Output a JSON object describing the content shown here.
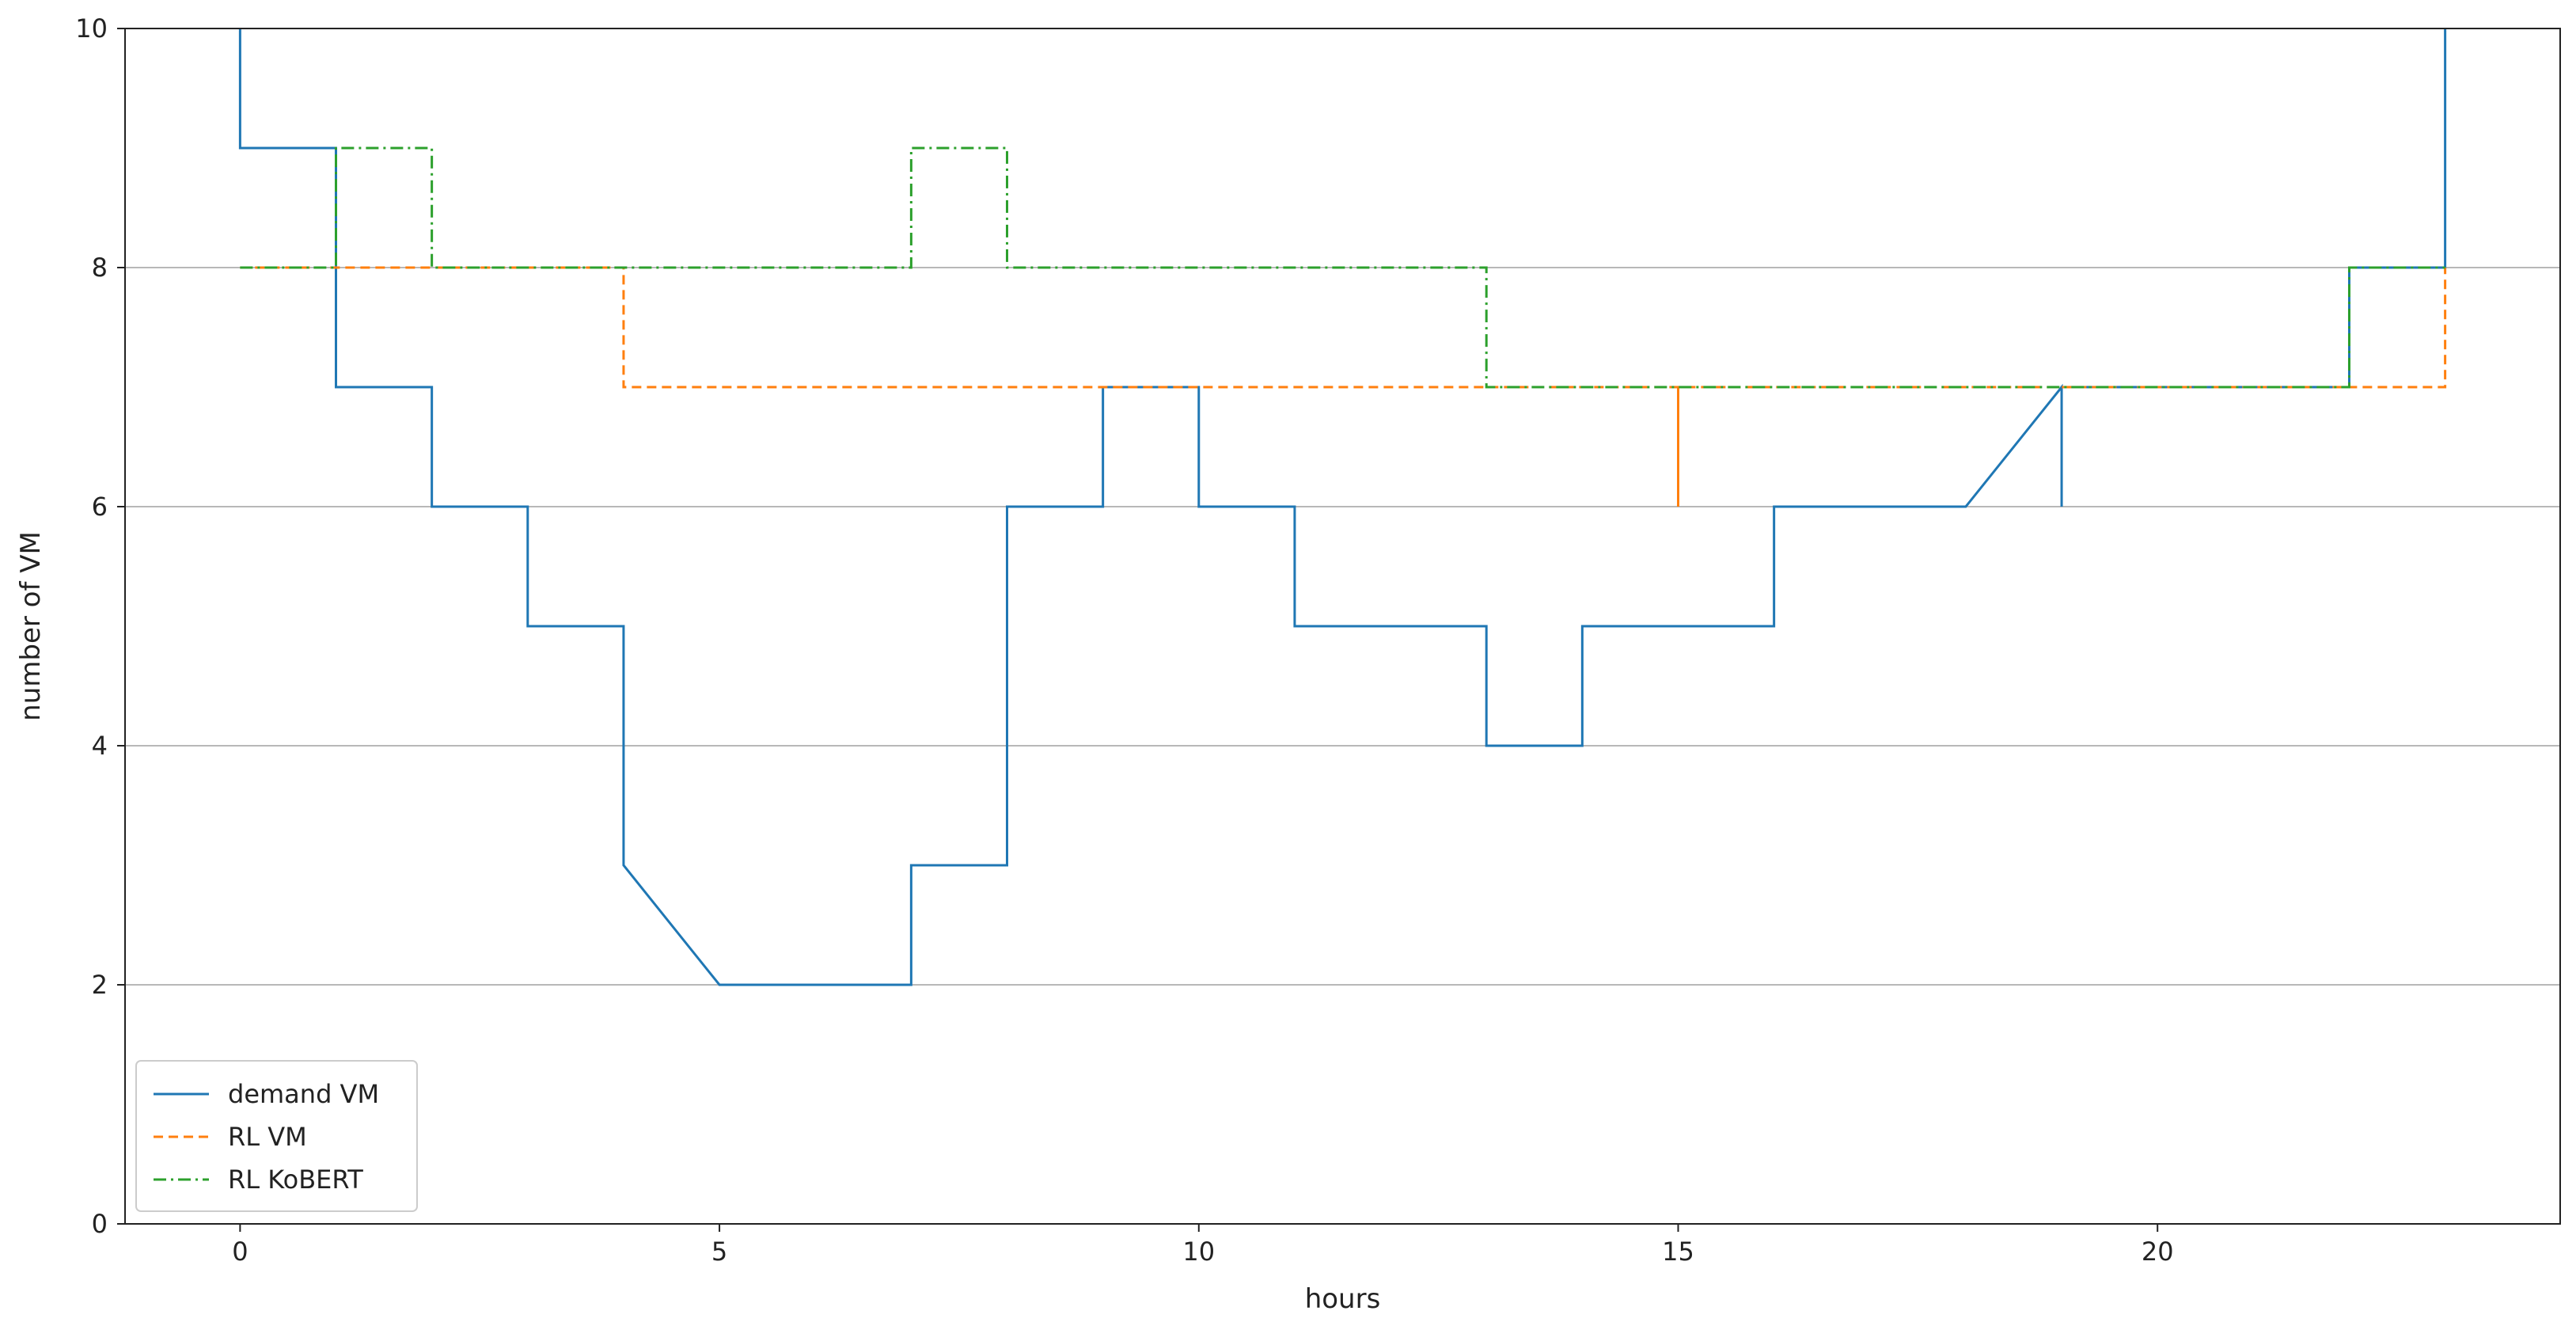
{
  "chart_data": {
    "type": "line",
    "title": "",
    "xlabel": "hours",
    "ylabel": "number of VM",
    "xlim": [
      -1.2,
      24.2
    ],
    "ylim": [
      0,
      10
    ],
    "xticks": [
      0,
      5,
      10,
      15,
      20
    ],
    "yticks": [
      0,
      2,
      4,
      6,
      8,
      10
    ],
    "grid": "horizontal",
    "legend_position": "lower-left",
    "series": [
      {
        "name": "demand VM",
        "color": "#1f77b4",
        "dash": "solid",
        "points": [
          [
            0,
            10
          ],
          [
            0,
            9
          ],
          [
            1,
            9
          ],
          [
            1,
            7
          ],
          [
            2,
            7
          ],
          [
            2,
            6
          ],
          [
            3,
            6
          ],
          [
            3,
            5
          ],
          [
            4,
            5
          ],
          [
            4,
            3
          ],
          [
            5,
            2
          ],
          [
            7,
            2
          ],
          [
            7,
            3
          ],
          [
            8,
            3
          ],
          [
            8,
            6
          ],
          [
            9,
            6
          ],
          [
            9,
            7
          ],
          [
            10,
            7
          ],
          [
            10,
            6
          ],
          [
            11,
            6
          ],
          [
            11,
            5
          ],
          [
            13,
            5
          ],
          [
            13,
            4
          ],
          [
            14,
            4
          ],
          [
            14,
            5
          ],
          [
            16,
            5
          ],
          [
            16,
            6
          ],
          [
            18,
            6
          ],
          [
            19,
            7
          ],
          [
            19,
            6
          ],
          [
            19,
            7
          ],
          [
            22,
            7
          ],
          [
            22,
            8
          ],
          [
            23,
            8
          ],
          [
            23,
            10
          ]
        ]
      },
      {
        "name": "RL VM",
        "color": "#ff7f0e",
        "dash": "dashed",
        "points": [
          [
            0,
            8
          ],
          [
            4,
            8
          ],
          [
            4,
            7
          ],
          [
            15,
            7
          ],
          [
            15,
            6
          ],
          [
            15,
            7
          ],
          [
            23,
            7
          ],
          [
            23,
            8
          ]
        ]
      },
      {
        "name": "RL KoBERT",
        "color": "#2ca02c",
        "dash": "dashdot",
        "points": [
          [
            0,
            8
          ],
          [
            1,
            8
          ],
          [
            1,
            9
          ],
          [
            2,
            9
          ],
          [
            2,
            8
          ],
          [
            7,
            8
          ],
          [
            7,
            9
          ],
          [
            8,
            9
          ],
          [
            8,
            8
          ],
          [
            13,
            8
          ],
          [
            13,
            7
          ],
          [
            22,
            7
          ],
          [
            22,
            8
          ],
          [
            23,
            8
          ]
        ]
      }
    ]
  }
}
